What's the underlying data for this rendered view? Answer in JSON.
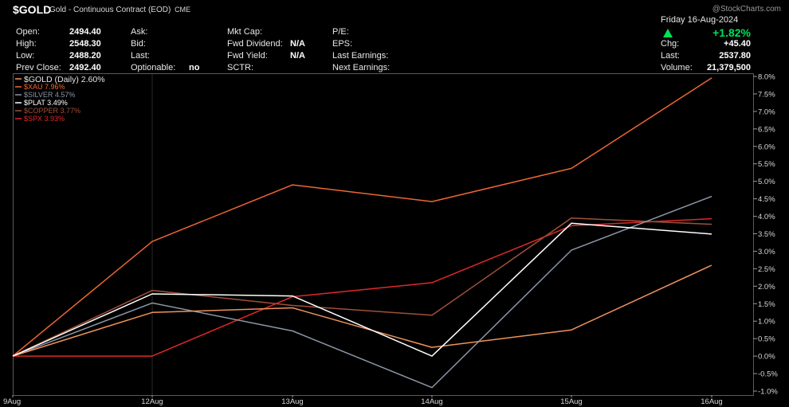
{
  "header": {
    "symbol": "$GOLD",
    "name": "Gold - Continuous Contract (EOD)",
    "exchange": "CME",
    "watermark": "@StockCharts.com",
    "date": "Friday  16-Aug-2024",
    "change_pct": "+1.82%"
  },
  "info": {
    "open_label": "Open:",
    "open": "2494.40",
    "high_label": "High:",
    "high": "2548.30",
    "low_label": "Low:",
    "low": "2488.20",
    "prevclose_label": "Prev Close:",
    "prevclose": "2492.40",
    "ask_label": "Ask:",
    "bid_label": "Bid:",
    "last_label": "Last:",
    "optionable_label": "Optionable:",
    "optionable": "no",
    "mktcap_label": "Mkt Cap:",
    "fwddiv_label": "Fwd Dividend:",
    "fwddiv": "N/A",
    "fwdyield_label": "Fwd Yield:",
    "fwdyield": "N/A",
    "sctr_label": "SCTR:",
    "pe_label": "P/E:",
    "eps_label": "EPS:",
    "lastearn_label": "Last Earnings:",
    "nextearn_label": "Next Earnings:",
    "chg_label": "Chg:",
    "chg": "+45.40",
    "last2_label": "Last:",
    "last2": "2537.80",
    "volume_label": "Volume:",
    "volume": "21,379,500"
  },
  "chart_data": {
    "type": "line",
    "x": [
      "9Aug",
      "12Aug",
      "13Aug",
      "14Aug",
      "15Aug",
      "16Aug"
    ],
    "y_ticks": [
      "8.0%",
      "7.5%",
      "7.0%",
      "6.5%",
      "6.0%",
      "5.5%",
      "5.0%",
      "4.5%",
      "4.0%",
      "3.5%",
      "3.0%",
      "2.5%",
      "2.0%",
      "1.5%",
      "1.0%",
      "0.5%",
      "0.0%",
      "-0.5%",
      "-1.0%"
    ],
    "ylim": [
      -1.0,
      8.0
    ],
    "grid": false,
    "legend_position": "top-left",
    "series": [
      {
        "name": "$GOLD (Daily) 2.60%",
        "color": "#f0925a",
        "values": [
          0,
          1.25,
          1.38,
          0.25,
          0.75,
          2.6
        ]
      },
      {
        "name": "$XAU 7.96%",
        "color": "#ee6633",
        "values": [
          0,
          3.28,
          4.9,
          4.42,
          5.37,
          7.96
        ]
      },
      {
        "name": "$SILVER 4.57%",
        "color": "#8a96a6",
        "values": [
          0,
          1.52,
          0.72,
          -0.9,
          3.03,
          4.57
        ]
      },
      {
        "name": "$PLAT 3.49%",
        "color": "#ffffff",
        "values": [
          0,
          1.78,
          1.72,
          0.0,
          3.8,
          3.49
        ]
      },
      {
        "name": "$COPPER 3.77%",
        "color": "#a0503a",
        "values": [
          0,
          1.88,
          1.45,
          1.17,
          3.95,
          3.77
        ]
      },
      {
        "name": "$SPX 3.93%",
        "color": "#e02828",
        "values": [
          0,
          0,
          1.7,
          2.1,
          3.73,
          3.93
        ]
      }
    ]
  }
}
